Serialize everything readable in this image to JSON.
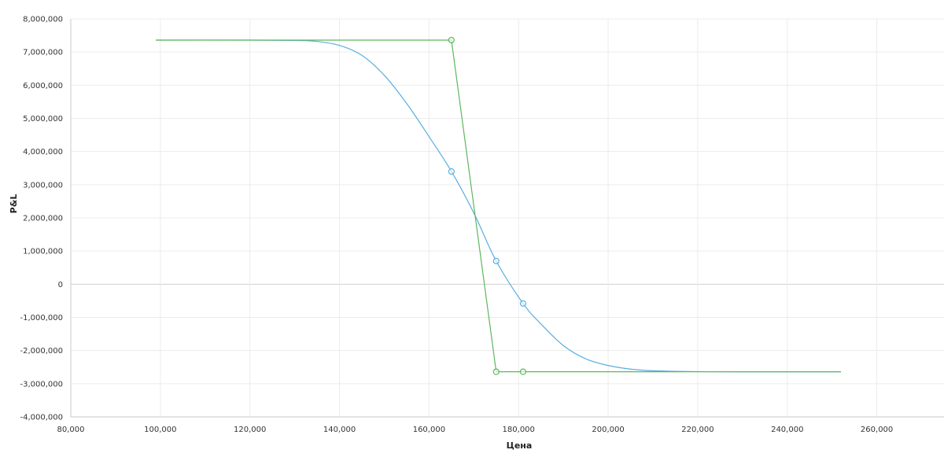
{
  "chart_data": {
    "type": "line",
    "title": "",
    "xlabel": "Цена",
    "ylabel": "P&L",
    "xlim": [
      80000,
      275000
    ],
    "ylim": [
      -4000000,
      8000000
    ],
    "x_ticks": [
      80000,
      100000,
      120000,
      140000,
      160000,
      180000,
      200000,
      220000,
      240000,
      260000
    ],
    "y_ticks": [
      -4000000,
      -3000000,
      -2000000,
      -1000000,
      0,
      1000000,
      2000000,
      3000000,
      4000000,
      5000000,
      6000000,
      7000000,
      8000000
    ],
    "x_tick_labels": [
      "80,000",
      "100,000",
      "120,000",
      "140,000",
      "160,000",
      "180,000",
      "200,000",
      "220,000",
      "240,000",
      "260,000"
    ],
    "y_tick_labels": [
      "-4,000,000",
      "-3,000,000",
      "-2,000,000",
      "-1,000,000",
      "0",
      "1,000,000",
      "2,000,000",
      "3,000,000",
      "4,000,000",
      "5,000,000",
      "6,000,000",
      "7,000,000",
      "8,000,000"
    ],
    "grid": true,
    "series": [
      {
        "color": "#5aaee0",
        "curve": "smooth",
        "points": [
          {
            "x": 99000,
            "y": 7360000
          },
          {
            "x": 120000,
            "y": 7360000
          },
          {
            "x": 130000,
            "y": 7350000
          },
          {
            "x": 135000,
            "y": 7320000
          },
          {
            "x": 140000,
            "y": 7200000
          },
          {
            "x": 145000,
            "y": 6900000
          },
          {
            "x": 150000,
            "y": 6300000
          },
          {
            "x": 155000,
            "y": 5450000
          },
          {
            "x": 160000,
            "y": 4450000
          },
          {
            "x": 165000,
            "y": 3400000
          },
          {
            "x": 170000,
            "y": 2150000
          },
          {
            "x": 175000,
            "y": 700000
          },
          {
            "x": 181000,
            "y": -580000
          },
          {
            "x": 185000,
            "y": -1200000
          },
          {
            "x": 190000,
            "y": -1850000
          },
          {
            "x": 195000,
            "y": -2250000
          },
          {
            "x": 200000,
            "y": -2450000
          },
          {
            "x": 205000,
            "y": -2560000
          },
          {
            "x": 210000,
            "y": -2610000
          },
          {
            "x": 220000,
            "y": -2635000
          },
          {
            "x": 230000,
            "y": -2640000
          },
          {
            "x": 252000,
            "y": -2640000
          }
        ],
        "markers": [
          {
            "x": 165000,
            "y": 3400000
          },
          {
            "x": 175000,
            "y": 700000
          },
          {
            "x": 181000,
            "y": -580000
          }
        ]
      },
      {
        "color": "#5cb85c",
        "curve": "linear",
        "points": [
          {
            "x": 99000,
            "y": 7360000
          },
          {
            "x": 165000,
            "y": 7360000
          },
          {
            "x": 175000,
            "y": -2640000
          },
          {
            "x": 181000,
            "y": -2640000
          },
          {
            "x": 252000,
            "y": -2640000
          }
        ],
        "markers": [
          {
            "x": 165000,
            "y": 7360000
          },
          {
            "x": 175000,
            "y": -2640000
          },
          {
            "x": 181000,
            "y": -2640000
          }
        ]
      }
    ]
  }
}
